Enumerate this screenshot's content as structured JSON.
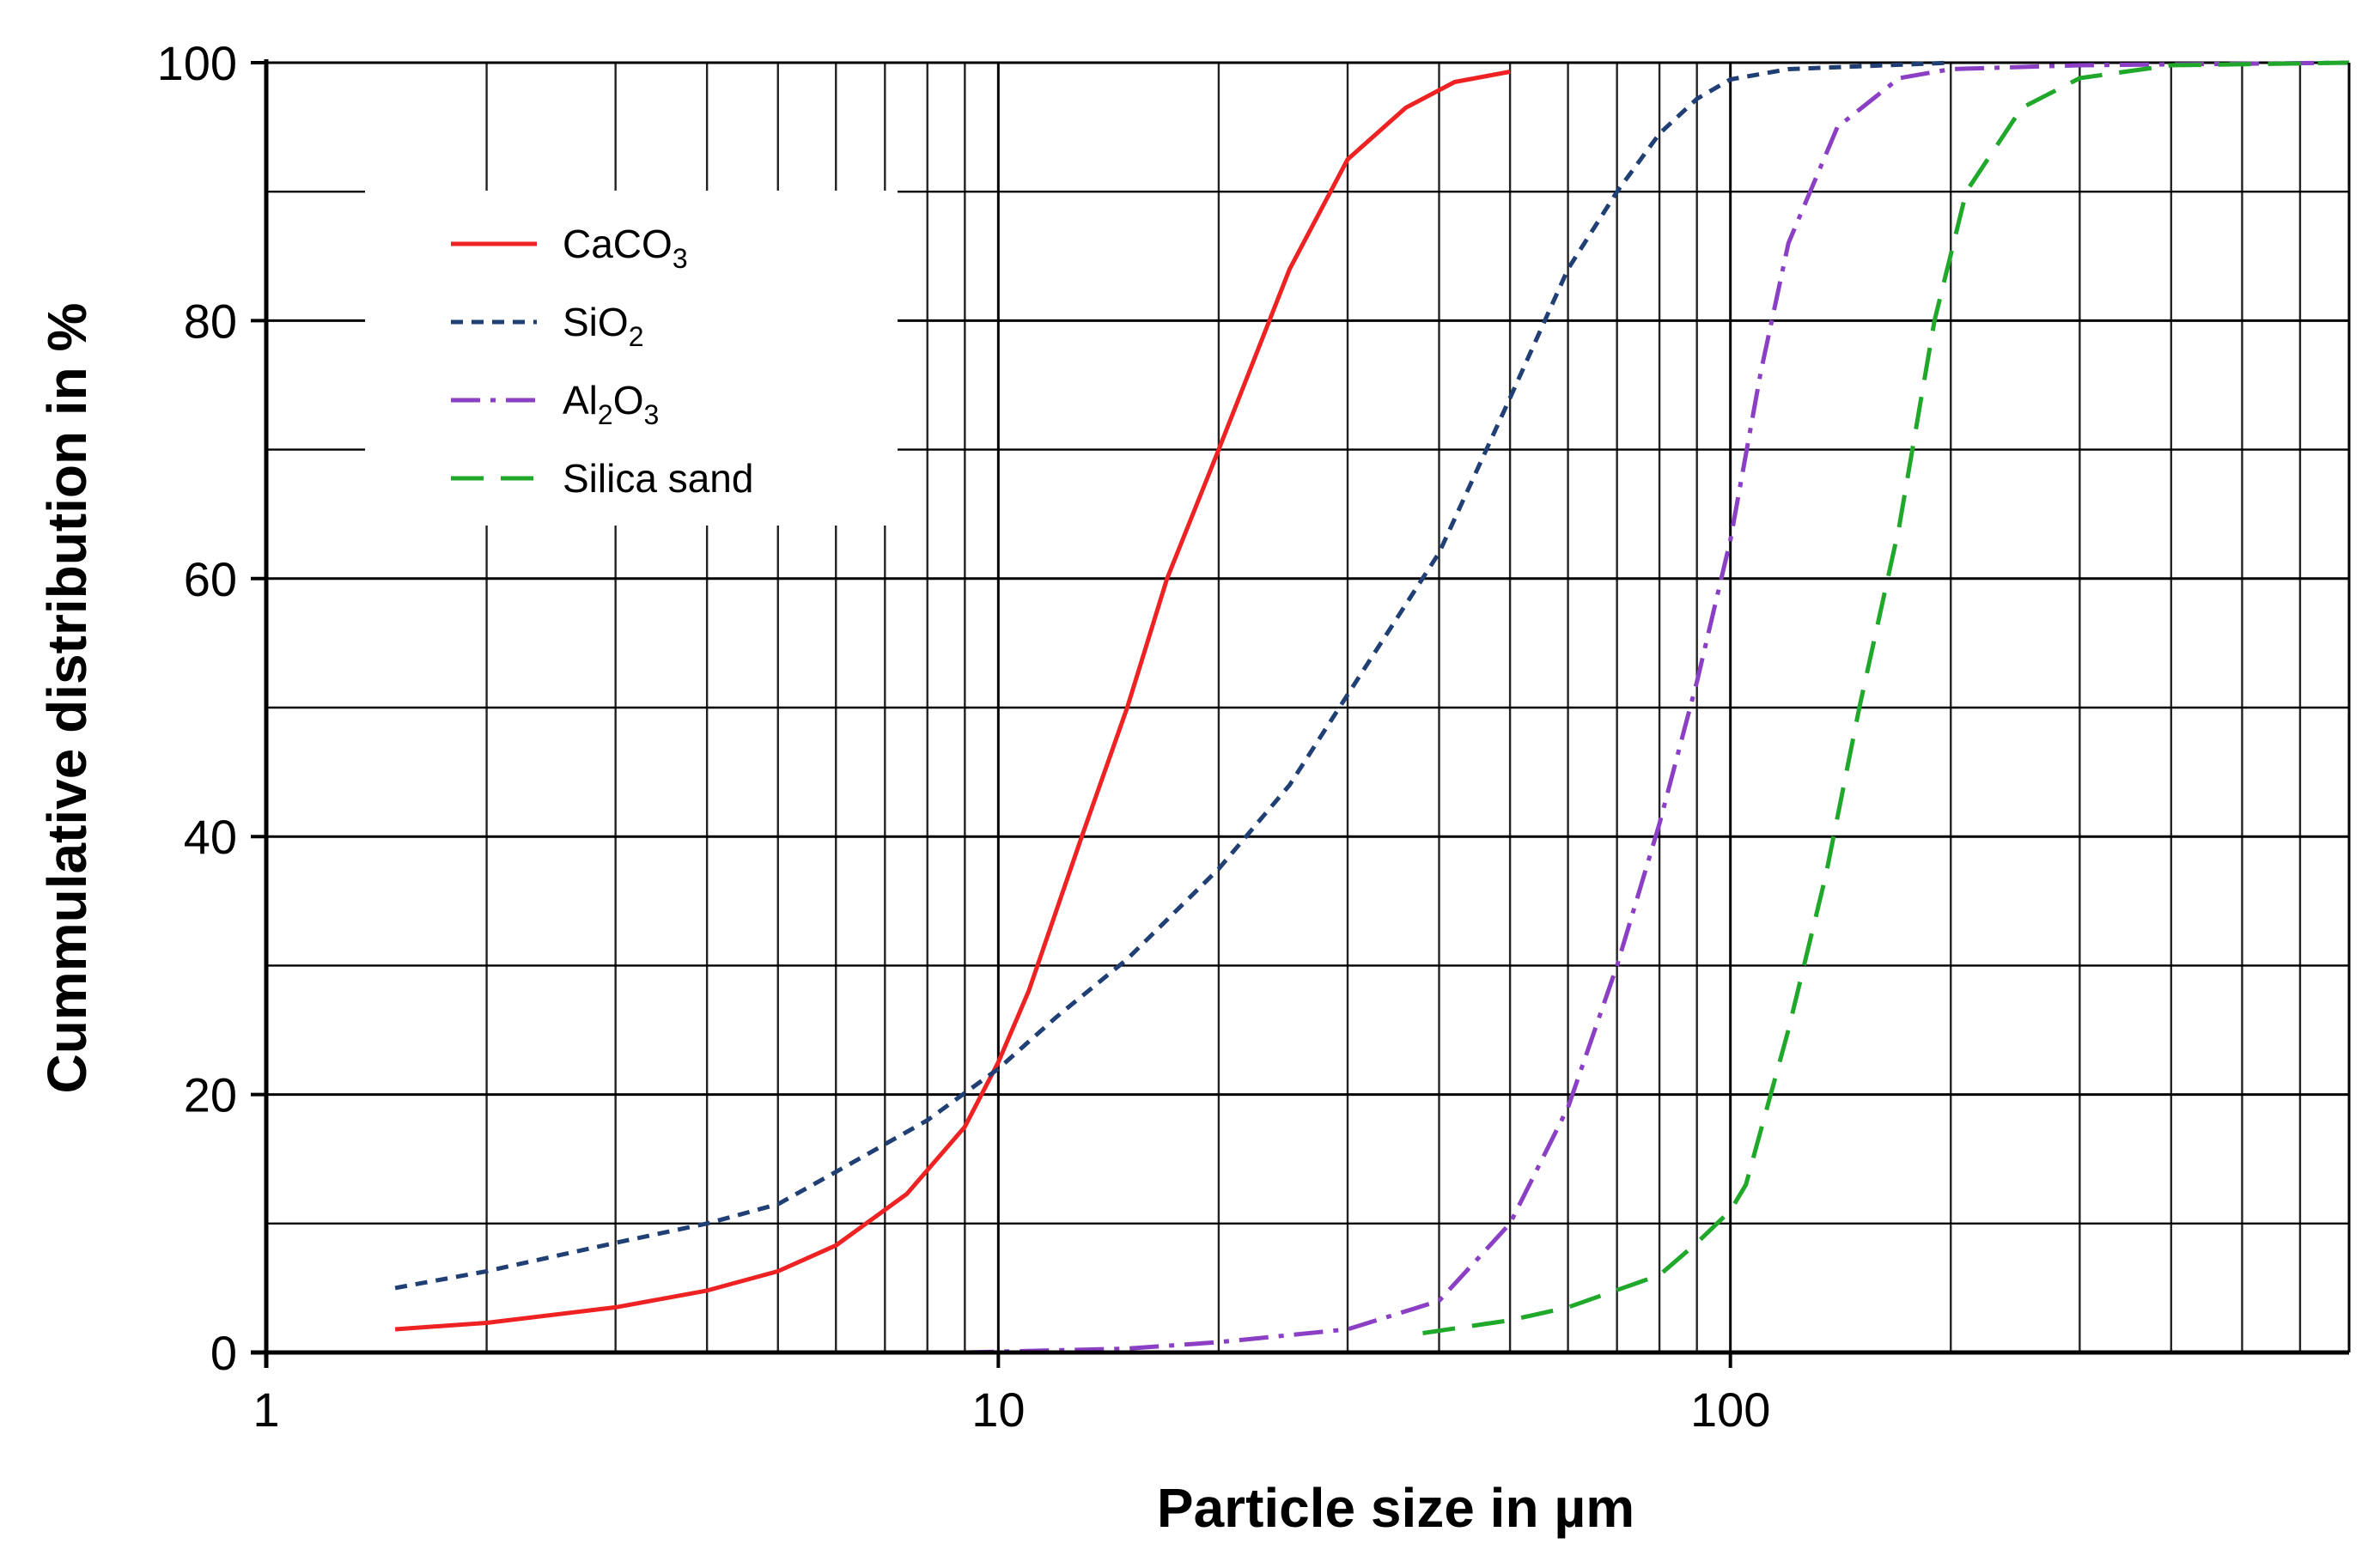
{
  "chart_data": {
    "type": "line",
    "xscale": "log",
    "xlabel": "Particle size in µm",
    "ylabel": "Cummulative distribution in %",
    "xlim": [
      1,
      700
    ],
    "ylim": [
      0,
      100
    ],
    "x_ticks": [
      {
        "value": 1,
        "label": "1"
      },
      {
        "value": 10,
        "label": "10"
      },
      {
        "value": 100,
        "label": "100"
      }
    ],
    "y_ticks": [
      {
        "value": 0,
        "label": "0"
      },
      {
        "value": 20,
        "label": "20"
      },
      {
        "value": 40,
        "label": "40"
      },
      {
        "value": 60,
        "label": "60"
      },
      {
        "value": 80,
        "label": "80"
      },
      {
        "value": 100,
        "label": "100"
      }
    ],
    "legend_position": "upper-left",
    "series": [
      {
        "name": "CaCO3",
        "legend": {
          "base": "CaCO",
          "sub": "3",
          "rest": ""
        },
        "color": "#ee2222",
        "dash": "solid",
        "points": [
          [
            1.5,
            1.8
          ],
          [
            2,
            2.3
          ],
          [
            3,
            3.5
          ],
          [
            4,
            4.8
          ],
          [
            5,
            6.3
          ],
          [
            6,
            8.3
          ],
          [
            7.5,
            12.3
          ],
          [
            9,
            17.5
          ],
          [
            10,
            22.5
          ],
          [
            11,
            28
          ],
          [
            13,
            40
          ],
          [
            15,
            50
          ],
          [
            17,
            60
          ],
          [
            20,
            70
          ],
          [
            25,
            84
          ],
          [
            30,
            92.5
          ],
          [
            36,
            96.5
          ],
          [
            42,
            98.5
          ],
          [
            50,
            99.3
          ]
        ]
      },
      {
        "name": "SiO2",
        "legend": {
          "base": "SiO",
          "sub": "2",
          "rest": ""
        },
        "color": "#1f3f75",
        "dash": "short",
        "points": [
          [
            1.5,
            5
          ],
          [
            2,
            6.3
          ],
          [
            3,
            8.5
          ],
          [
            4,
            10
          ],
          [
            5,
            11.5
          ],
          [
            6,
            14
          ],
          [
            8,
            18
          ],
          [
            10,
            22
          ],
          [
            12,
            26
          ],
          [
            15,
            30.5
          ],
          [
            20,
            37.5
          ],
          [
            25,
            44
          ],
          [
            30,
            51
          ],
          [
            40,
            62
          ],
          [
            50,
            74
          ],
          [
            60,
            84
          ],
          [
            70,
            90
          ],
          [
            80,
            94.5
          ],
          [
            90,
            97.2
          ],
          [
            100,
            98.7
          ],
          [
            120,
            99.5
          ],
          [
            200,
            100
          ]
        ]
      },
      {
        "name": "Al2O3",
        "legend": {
          "base": "Al",
          "sub": "2",
          "rest": "O",
          "sub2": "3"
        },
        "color": "#8b3fc4",
        "dash": "dashdot",
        "points": [
          [
            9,
            0
          ],
          [
            15,
            0.3
          ],
          [
            20,
            0.8
          ],
          [
            30,
            1.8
          ],
          [
            40,
            4
          ],
          [
            50,
            10
          ],
          [
            60,
            19
          ],
          [
            70,
            30
          ],
          [
            80,
            41
          ],
          [
            90,
            52
          ],
          [
            100,
            63
          ],
          [
            110,
            76
          ],
          [
            120,
            86
          ],
          [
            140,
            95
          ],
          [
            170,
            98.8
          ],
          [
            200,
            99.5
          ],
          [
            300,
            99.8
          ],
          [
            700,
            100
          ]
        ]
      },
      {
        "name": "Silica sand",
        "legend": {
          "base": "Silica sand",
          "sub": "",
          "rest": ""
        },
        "color": "#1fa82a",
        "dash": "long",
        "points": [
          [
            38,
            1.5
          ],
          [
            50,
            2.5
          ],
          [
            60,
            3.5
          ],
          [
            80,
            6
          ],
          [
            90,
            8.5
          ],
          [
            100,
            11
          ],
          [
            105,
            13
          ],
          [
            120,
            25
          ],
          [
            135,
            37
          ],
          [
            150,
            50
          ],
          [
            170,
            64
          ],
          [
            190,
            80
          ],
          [
            210,
            90
          ],
          [
            250,
            96.5
          ],
          [
            300,
            98.8
          ],
          [
            400,
            99.8
          ],
          [
            700,
            100
          ]
        ]
      }
    ]
  }
}
